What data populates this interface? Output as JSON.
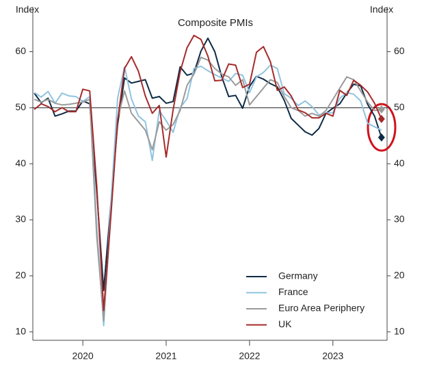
{
  "chart_data": {
    "type": "line",
    "title": "Composite PMIs",
    "y_label": "Index",
    "y2_label": "Index",
    "x": [
      2019.417,
      2019.5,
      2019.583,
      2019.667,
      2019.75,
      2019.833,
      2019.917,
      2020,
      2020.083,
      2020.167,
      2020.25,
      2020.333,
      2020.417,
      2020.5,
      2020.583,
      2020.667,
      2020.75,
      2020.833,
      2020.917,
      2021,
      2021.083,
      2021.167,
      2021.25,
      2021.333,
      2021.417,
      2021.5,
      2021.583,
      2021.667,
      2021.75,
      2021.833,
      2021.917,
      2022,
      2022.083,
      2022.167,
      2022.25,
      2022.333,
      2022.417,
      2022.5,
      2022.583,
      2022.667,
      2022.75,
      2022.833,
      2022.917,
      2023,
      2023.083,
      2023.167,
      2023.25,
      2023.333,
      2023.417,
      2023.5,
      2023.583
    ],
    "series": [
      {
        "name": "Germany",
        "color": "#0d2a45",
        "last_marker": true,
        "values": [
          52.6,
          50.9,
          51.7,
          48.5,
          48.9,
          49.4,
          49.4,
          51.2,
          50.7,
          35.0,
          17.4,
          32.3,
          47.0,
          55.3,
          54.4,
          54.7,
          55.0,
          51.7,
          52.0,
          50.8,
          51.1,
          57.3,
          55.8,
          56.2,
          60.1,
          62.4,
          60.0,
          55.5,
          52.0,
          52.2,
          49.9,
          53.8,
          55.6,
          55.1,
          54.3,
          53.7,
          51.3,
          48.1,
          46.9,
          45.7,
          45.1,
          46.3,
          49.0,
          49.9,
          50.7,
          52.6,
          54.2,
          53.9,
          50.6,
          48.5,
          44.7
        ]
      },
      {
        "name": "France",
        "color": "#8fc3e0",
        "last_marker": false,
        "values": [
          52.7,
          51.9,
          52.9,
          50.8,
          52.6,
          52.1,
          52.0,
          51.1,
          52.0,
          28.9,
          11.1,
          32.1,
          51.7,
          57.3,
          51.6,
          48.5,
          47.5,
          40.6,
          49.5,
          47.7,
          45.6,
          50.0,
          51.6,
          57.0,
          57.4,
          56.6,
          55.9,
          55.3,
          54.7,
          56.1,
          55.8,
          52.7,
          55.5,
          56.3,
          57.6,
          57.0,
          52.5,
          51.7,
          50.4,
          51.2,
          50.2,
          48.7,
          49.1,
          49.1,
          51.7,
          52.7,
          52.4,
          51.2,
          47.2,
          46.6,
          46.0
        ]
      },
      {
        "name": "Euro Area Periphery",
        "color": "#9a9a9a",
        "last_marker": true,
        "values": [
          51.5,
          51.0,
          51.5,
          50.8,
          50.5,
          50.6,
          50.8,
          51.0,
          51.5,
          27,
          12,
          30,
          48,
          53,
          49,
          47.5,
          46,
          42.5,
          47.5,
          46,
          47,
          49.5,
          54,
          56,
          59,
          58.5,
          57,
          56,
          55.5,
          54,
          55,
          50.5,
          52,
          53.5,
          55,
          54.5,
          52,
          50,
          49.5,
          48.5,
          49,
          48.5,
          49.5,
          51.5,
          53.5,
          55.5,
          55,
          53,
          51,
          49.5,
          49.7
        ]
      },
      {
        "name": "UK",
        "color": "#a52a2a",
        "last_marker": true,
        "values": [
          49.7,
          50.7,
          50.2,
          49.3,
          50.0,
          49.3,
          49.3,
          53.3,
          53.0,
          36.0,
          13.8,
          30.0,
          47.7,
          57.0,
          59.1,
          56.5,
          52.1,
          49.0,
          50.4,
          41.2,
          49.6,
          56.4,
          60.7,
          62.9,
          62.2,
          59.2,
          54.8,
          54.9,
          57.8,
          57.6,
          53.6,
          54.2,
          59.9,
          60.9,
          58.2,
          53.1,
          53.7,
          52.1,
          49.6,
          49.1,
          48.2,
          48.2,
          49.0,
          48.5,
          53.1,
          52.2,
          54.9,
          54.0,
          52.8,
          50.8,
          48.0
        ]
      }
    ],
    "xlim": [
      2019.4,
      2023.65
    ],
    "xticks": [
      2020,
      2021,
      2022,
      2023
    ],
    "ylim": [
      8.5,
      68
    ],
    "yticks": [
      10,
      20,
      30,
      40,
      50,
      60
    ],
    "y2lim": [
      8.5,
      68
    ],
    "y2ticks": [
      10,
      20,
      30,
      40,
      50,
      60
    ],
    "hline": 50,
    "legend": "lower right"
  }
}
